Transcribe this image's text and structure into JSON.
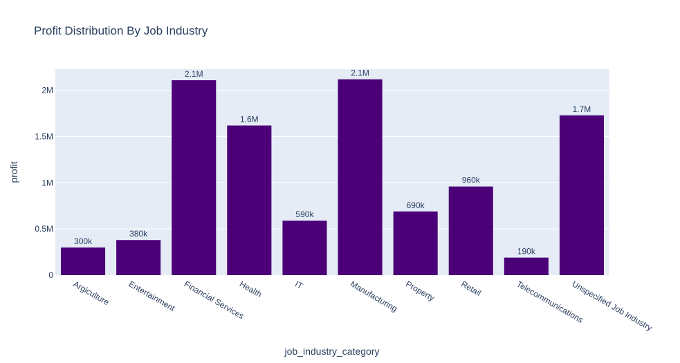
{
  "chart_data": {
    "type": "bar",
    "title": "Profit Distribution By Job Industry",
    "xlabel": "job_industry_category",
    "ylabel": "profit",
    "categories": [
      "Argiculture",
      "Entertainment",
      "Financial Services",
      "Health",
      "IT",
      "Manufacturing",
      "Property",
      "Retail",
      "Telecommunications",
      "Unspecified Job Industry"
    ],
    "values": [
      300000,
      380000,
      2110000,
      1620000,
      590000,
      2120000,
      690000,
      960000,
      190000,
      1730000
    ],
    "data_labels": [
      "300k",
      "380k",
      "2.1M",
      "1.6M",
      "590k",
      "2.1M",
      "690k",
      "960k",
      "190k",
      "1.7M"
    ],
    "yticks": [
      0,
      500000,
      1000000,
      1500000,
      2000000
    ],
    "ytick_labels": [
      "0",
      "0.5M",
      "1M",
      "1.5M",
      "2M"
    ],
    "ylim": [
      0,
      2230000
    ],
    "grid": true,
    "colors": {
      "bar": "#4b0078",
      "plot_background": "#e5ecf6",
      "text": "#2a3f5f",
      "grid": "#ffffff"
    }
  }
}
